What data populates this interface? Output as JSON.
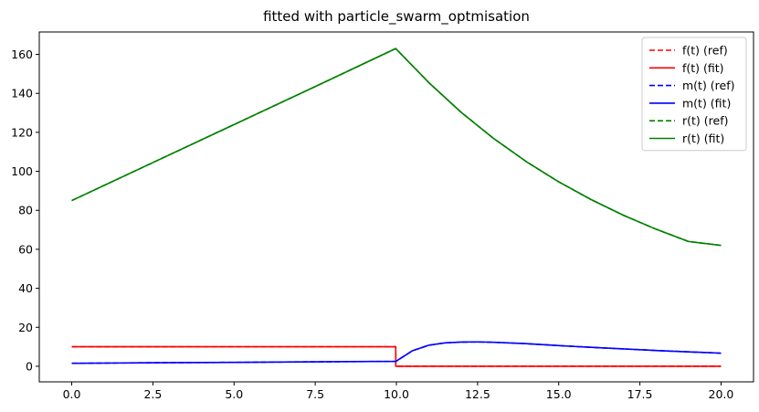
{
  "chart_data": {
    "type": "line",
    "title": "fitted with particle_swarm_optmisation",
    "xlabel": "",
    "ylabel": "",
    "xlim": [
      -1.0,
      21.0
    ],
    "ylim": [
      -8.0,
      171.5
    ],
    "xticks": [
      0.0,
      2.5,
      5.0,
      7.5,
      10.0,
      12.5,
      15.0,
      17.5,
      20.0
    ],
    "xtick_labels": [
      "0.0",
      "2.5",
      "5.0",
      "7.5",
      "10.0",
      "12.5",
      "15.0",
      "17.5",
      "20.0"
    ],
    "yticks": [
      0,
      20,
      40,
      60,
      80,
      100,
      120,
      140,
      160
    ],
    "ytick_labels": [
      "0",
      "20",
      "40",
      "60",
      "80",
      "100",
      "120",
      "140",
      "160"
    ],
    "grid": false,
    "legend_position": "top-right",
    "series": [
      {
        "name": "f(t) (ref)",
        "color": "#ff0000",
        "dash": "dashed",
        "x": [
          0,
          9.98,
          9.98,
          20
        ],
        "y": [
          10,
          10,
          0,
          0
        ]
      },
      {
        "name": "f(t) (fit)",
        "color": "#ff0000",
        "dash": "solid",
        "x": [
          0,
          9.98,
          9.98,
          20
        ],
        "y": [
          10,
          10,
          0,
          0
        ]
      },
      {
        "name": "m(t) (ref)",
        "color": "#0000ff",
        "dash": "dashed",
        "x": [
          0,
          2.5,
          5,
          7.5,
          9.98,
          10,
          10.5,
          11,
          11.5,
          12,
          12.5,
          13,
          14,
          15,
          16,
          17,
          18,
          19,
          20
        ],
        "y": [
          1.5,
          1.8,
          2.0,
          2.3,
          2.5,
          2.7,
          8.0,
          10.8,
          12.0,
          12.4,
          12.5,
          12.3,
          11.6,
          10.6,
          9.7,
          8.9,
          8.1,
          7.4,
          6.7
        ]
      },
      {
        "name": "m(t) (fit)",
        "color": "#0000ff",
        "dash": "solid",
        "x": [
          0,
          2.5,
          5,
          7.5,
          9.98,
          10,
          10.5,
          11,
          11.5,
          12,
          12.5,
          13,
          14,
          15,
          16,
          17,
          18,
          19,
          20
        ],
        "y": [
          1.5,
          1.8,
          2.0,
          2.3,
          2.5,
          2.7,
          8.0,
          10.8,
          12.0,
          12.4,
          12.5,
          12.3,
          11.6,
          10.6,
          9.7,
          8.9,
          8.1,
          7.4,
          6.7
        ]
      },
      {
        "name": "r(t) (ref)",
        "color": "#008000",
        "dash": "dashed",
        "x": [
          0,
          2.5,
          5,
          7.5,
          9.98,
          11,
          12,
          13,
          14,
          15,
          16,
          17,
          18,
          19,
          20
        ],
        "y": [
          85,
          104.5,
          124,
          143.5,
          163,
          145.5,
          130.2,
          116.8,
          105.0,
          94.6,
          85.5,
          77.4,
          70.3,
          64.0,
          62.0
        ]
      },
      {
        "name": "r(t) (fit)",
        "color": "#008000",
        "dash": "solid",
        "x": [
          0,
          2.5,
          5,
          7.5,
          9.98,
          11,
          12,
          13,
          14,
          15,
          16,
          17,
          18,
          19,
          20
        ],
        "y": [
          85,
          104.5,
          124,
          143.5,
          163,
          145.5,
          130.2,
          116.8,
          105.0,
          94.6,
          85.5,
          77.4,
          70.3,
          64.0,
          62.0
        ]
      }
    ]
  }
}
